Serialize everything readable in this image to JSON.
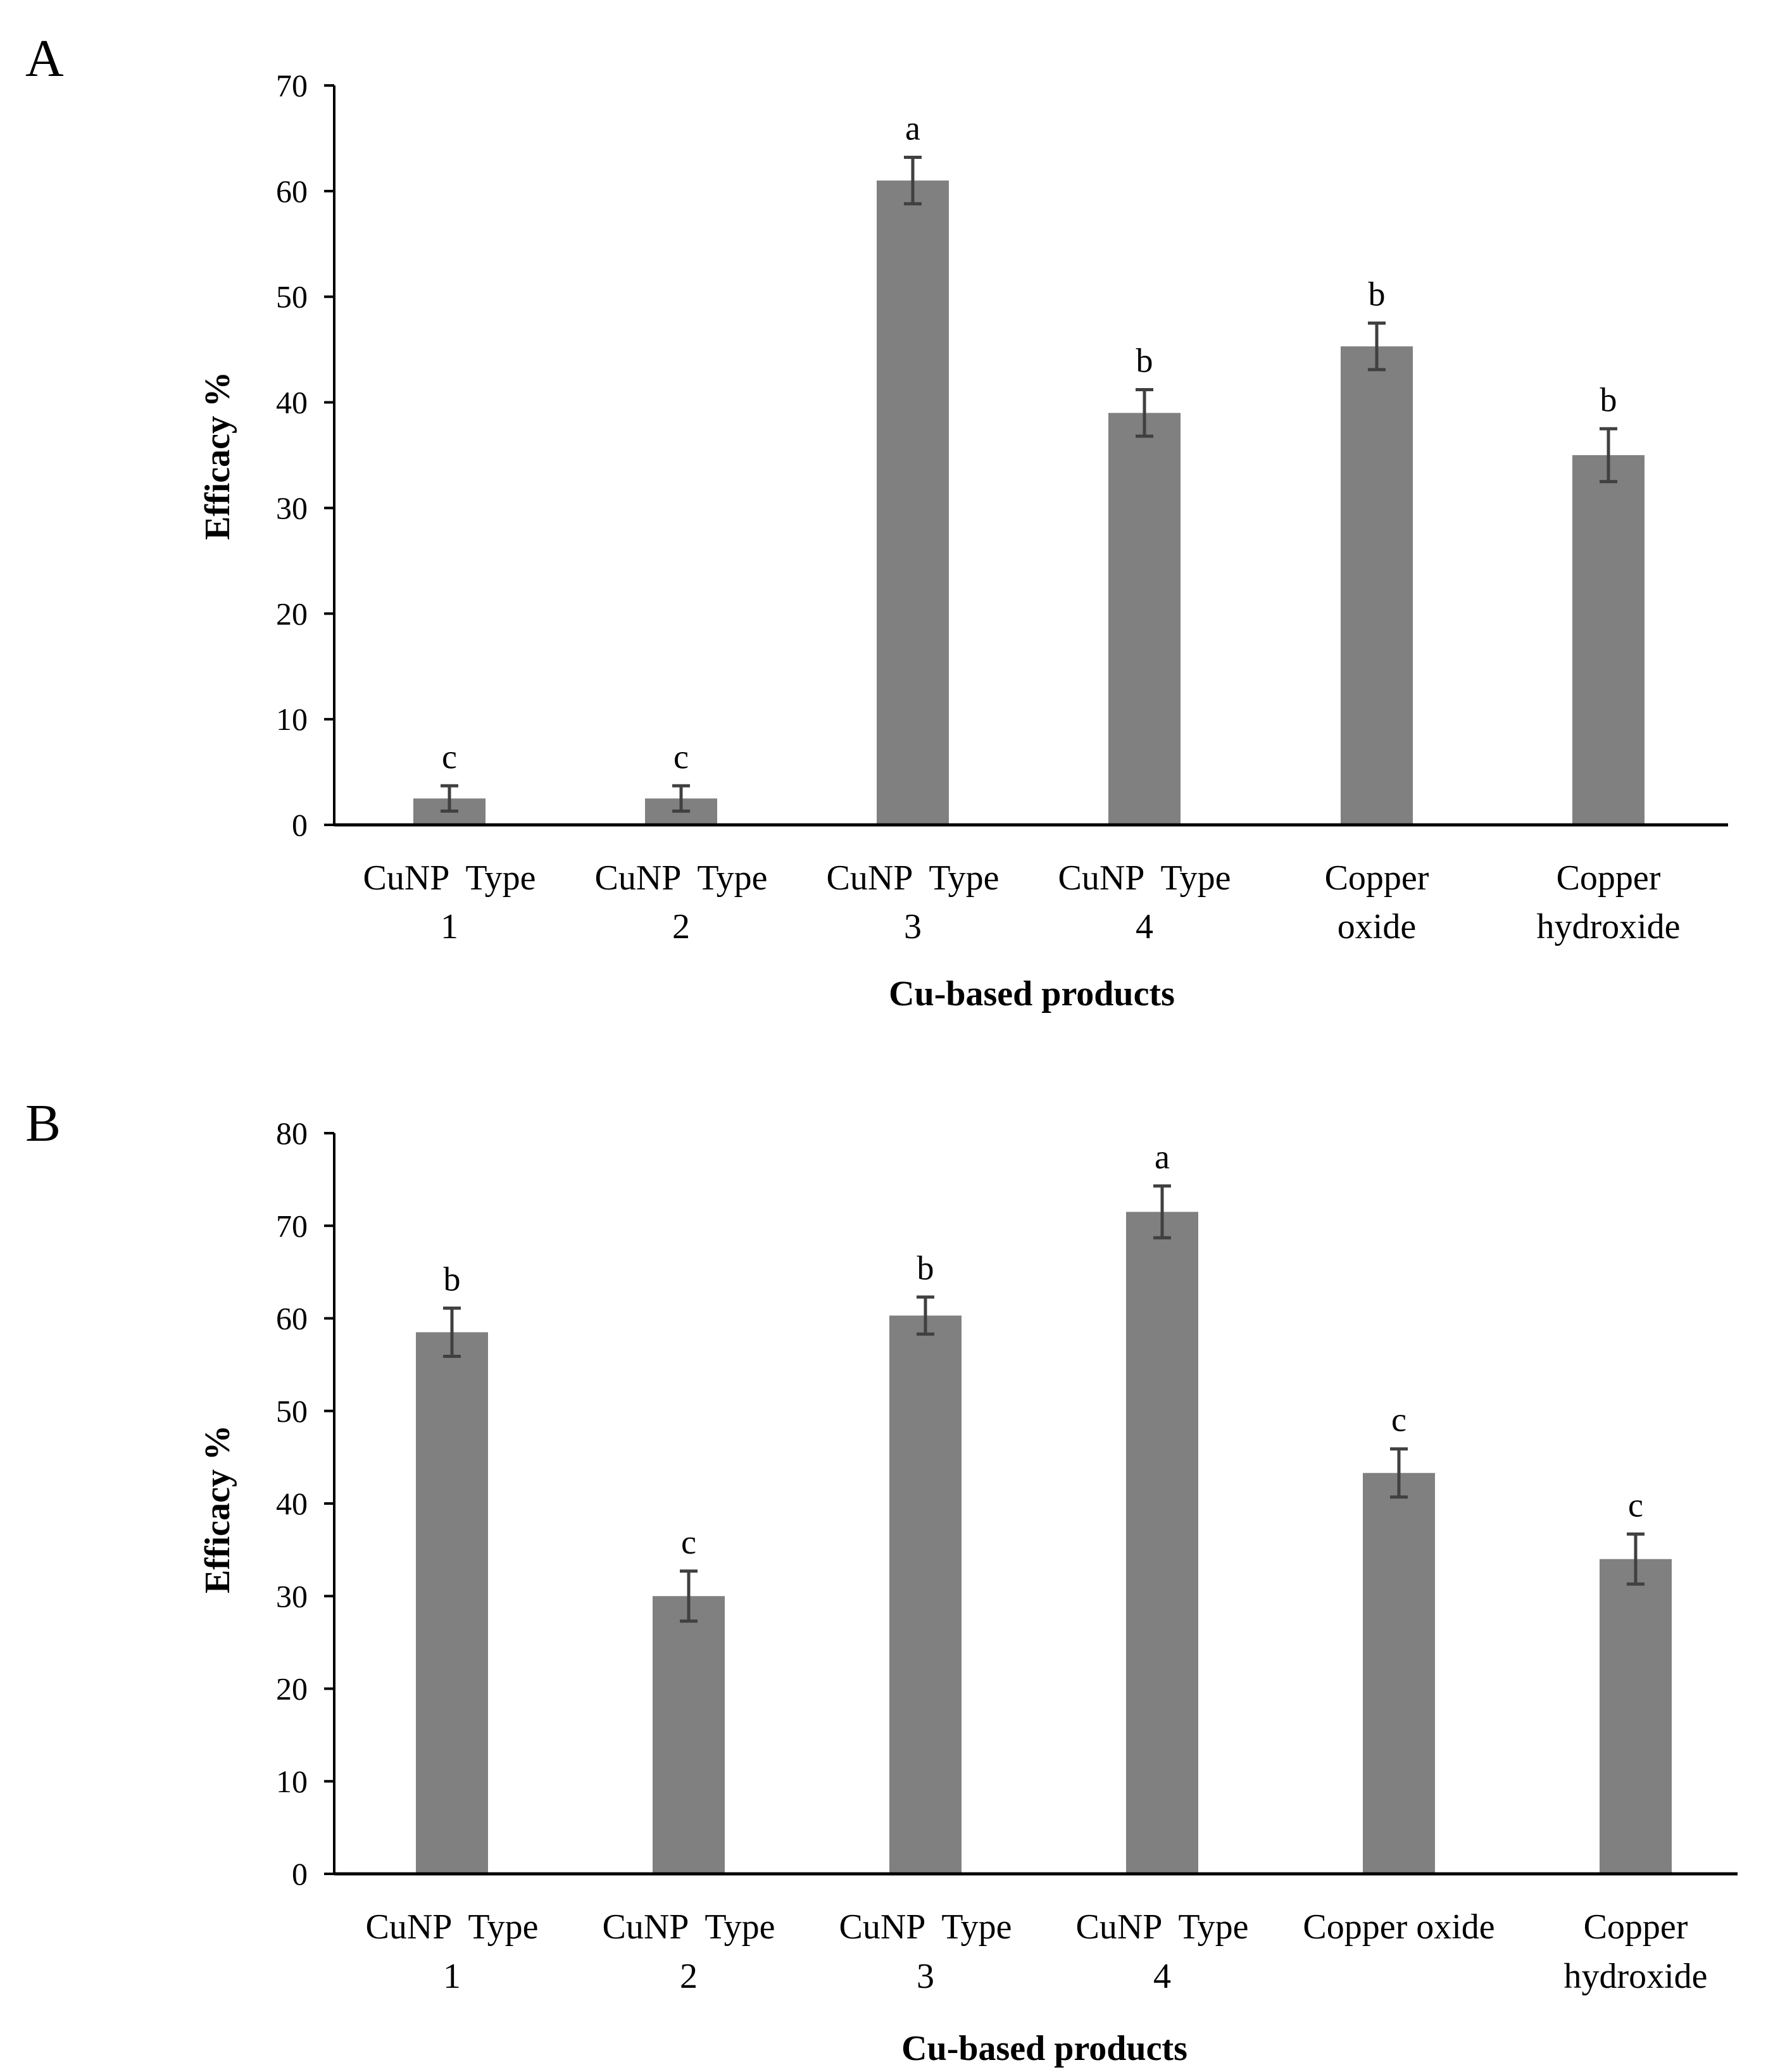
{
  "figure": {
    "background": "#ffffff",
    "bar_color": "#808080",
    "error_color": "#404040",
    "axis_color": "#000000"
  },
  "chart_data": [
    {
      "panel": "A",
      "type": "bar",
      "categories": [
        [
          "CuNP  Type",
          "1"
        ],
        [
          "CuNP  Type",
          "2"
        ],
        [
          "CuNP  Type",
          "3"
        ],
        [
          "CuNP  Type",
          "4"
        ],
        [
          "Copper",
          "oxide"
        ],
        [
          "Copper",
          "hydroxide"
        ]
      ],
      "values": [
        2.5,
        2.5,
        61,
        39,
        45.3,
        35
      ],
      "errors": [
        1.2,
        1.2,
        2.2,
        2.2,
        2.2,
        2.5
      ],
      "letters": [
        "c",
        "c",
        "a",
        "b",
        "b",
        "b"
      ],
      "ylabel": "Efficacy %",
      "xlabel": "Cu-based products",
      "ylim": [
        0,
        70
      ],
      "yticks": [
        0,
        10,
        20,
        30,
        40,
        50,
        60,
        70
      ]
    },
    {
      "panel": "B",
      "type": "bar",
      "categories": [
        [
          "CuNP  Type",
          "1"
        ],
        [
          "CuNP  Type",
          "2"
        ],
        [
          "CuNP  Type",
          "3"
        ],
        [
          "CuNP  Type",
          "4"
        ],
        [
          "Copper oxide"
        ],
        [
          "Copper",
          "hydroxide"
        ]
      ],
      "values": [
        58.5,
        30,
        60.3,
        71.5,
        43.3,
        34
      ],
      "errors": [
        2.6,
        2.7,
        2,
        2.8,
        2.6,
        2.7
      ],
      "letters": [
        "b",
        "c",
        "b",
        "a",
        "c",
        "c"
      ],
      "ylabel": "Efficacy %",
      "xlabel": "Cu-based products",
      "ylim": [
        0,
        80
      ],
      "yticks": [
        0,
        10,
        20,
        30,
        40,
        50,
        60,
        70,
        80
      ]
    }
  ]
}
